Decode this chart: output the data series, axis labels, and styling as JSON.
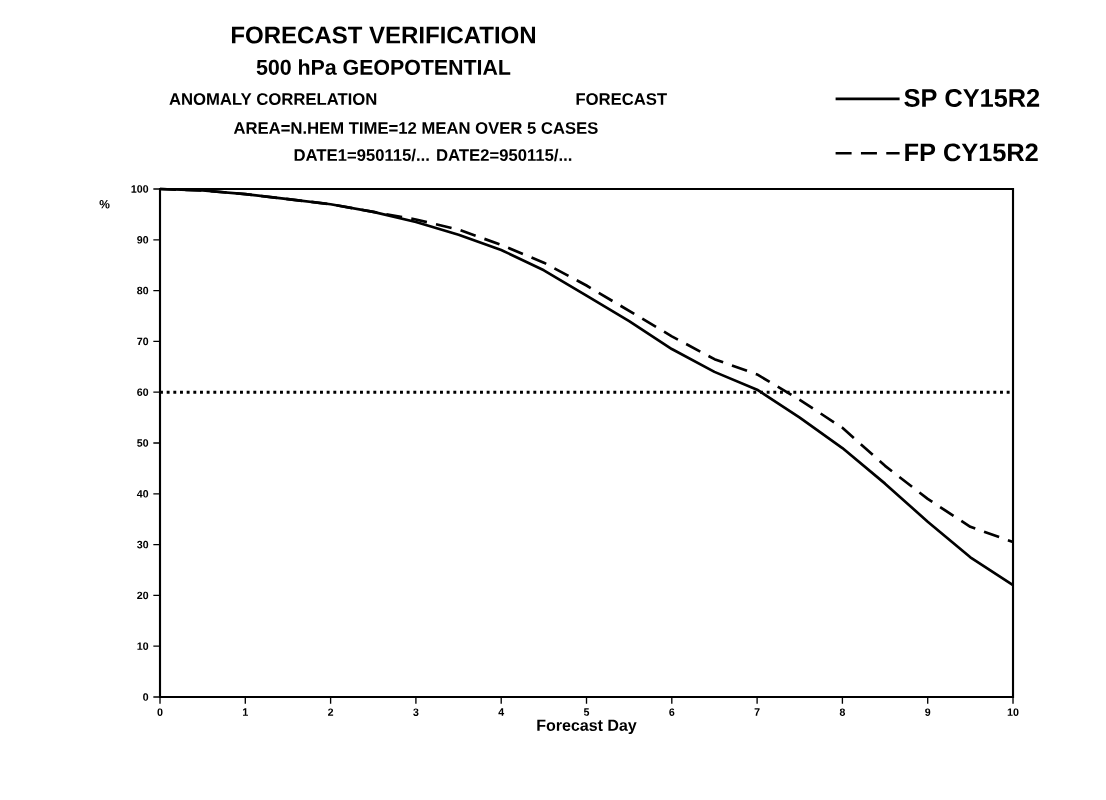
{
  "chart_data": {
    "type": "line",
    "title": "FORECAST VERIFICATION",
    "subtitle": "500 hPa GEOPOTENTIAL",
    "annotations": [
      "ANOMALY CORRELATION",
      "FORECAST",
      "AREA=N.HEM    TIME=12   MEAN OVER   5 CASES",
      "DATE1=950115/... DATE2=950115/..."
    ],
    "xlabel": "Forecast Day",
    "ylabel": "%",
    "x": [
      0,
      0.5,
      1,
      1.5,
      2,
      2.5,
      3,
      3.5,
      4,
      4.5,
      5,
      5.5,
      6,
      6.5,
      7,
      7.5,
      8,
      8.5,
      9,
      9.5,
      10
    ],
    "series": [
      {
        "name": "SP CY15R2",
        "color": "#000000",
        "line_style": "solid",
        "values": [
          100,
          99.7,
          99,
          98,
          97,
          95.5,
          93.5,
          91,
          88,
          84,
          79,
          74,
          68.5,
          64,
          60.5,
          55,
          49,
          42,
          34.5,
          27.5,
          22
        ]
      },
      {
        "name": "FP CY15R2",
        "color": "#000000",
        "line_style": "dashed",
        "values": [
          100,
          99.7,
          99,
          98,
          97,
          95.5,
          94,
          92,
          89,
          85.5,
          81,
          76,
          71,
          66.5,
          63.5,
          58.5,
          53,
          45.5,
          39,
          33.5,
          30.5
        ]
      }
    ],
    "ref_lines": [
      {
        "axis": "y",
        "value": 60,
        "line_style": "dotted",
        "color": "#000000"
      }
    ],
    "xlim": [
      0,
      10
    ],
    "ylim": [
      0,
      100
    ],
    "xticks": [
      0,
      1,
      2,
      3,
      4,
      5,
      6,
      7,
      8,
      9,
      10
    ],
    "yticks": [
      0,
      10,
      20,
      30,
      40,
      50,
      60,
      70,
      80,
      90,
      100
    ],
    "grid": false,
    "legend": "top right",
    "marker": "none"
  }
}
